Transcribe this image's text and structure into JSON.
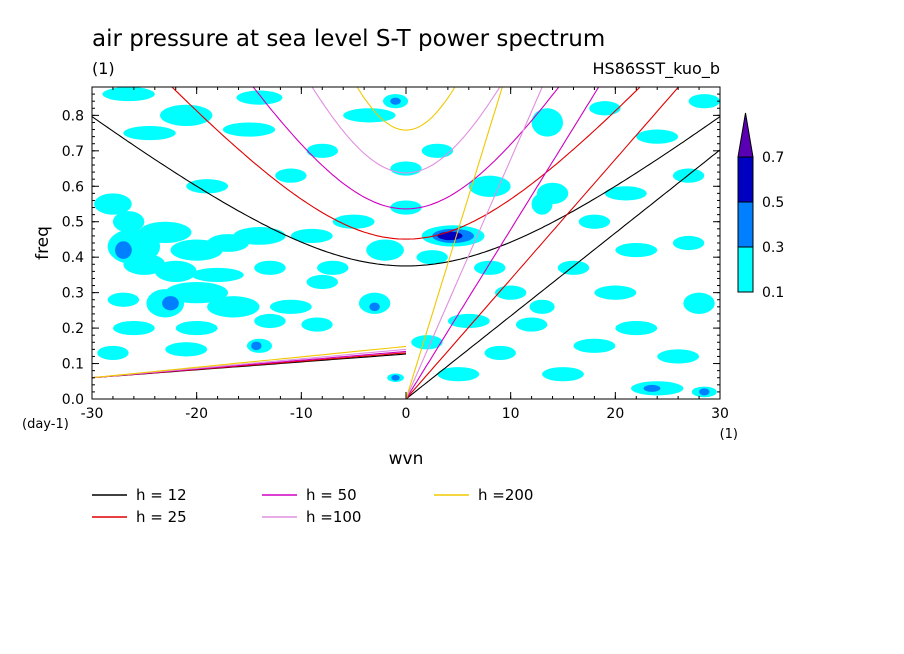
{
  "chart_data": {
    "type": "heatmap",
    "title": "air pressure at sea level S-T power spectrum",
    "subtitle_left": "(1)",
    "subtitle_right": "HS86SST_kuo_b",
    "xlabel": "wvn",
    "ylabel": "freq",
    "x_unit": "(1)",
    "y_unit": "(day-1)",
    "xlim": [
      -30,
      30
    ],
    "ylim": [
      0,
      0.88
    ],
    "xticks": [
      -30,
      -20,
      -10,
      0,
      10,
      20,
      30
    ],
    "xtick_labels": [
      "-30",
      "-20",
      "-10",
      "0",
      "10",
      "20",
      "30"
    ],
    "yticks": [
      0,
      0.1,
      0.2,
      0.3,
      0.4,
      0.5,
      0.6,
      0.7,
      0.8
    ],
    "ytick_labels": [
      "0.0",
      "0.1",
      "0.2",
      "0.3",
      "0.4",
      "0.5",
      "0.6",
      "0.7",
      "0.8"
    ],
    "colorbar": {
      "levels": [
        0.1,
        0.3,
        0.5,
        0.7
      ],
      "labels": [
        "0.1",
        "0.3",
        "0.5",
        "0.7"
      ],
      "colors": [
        "#00ffff",
        "#0080ff",
        "#0000c0",
        "#5a00b4"
      ]
    },
    "series": [
      {
        "name": "h = 12",
        "h": 12,
        "color": "#000000"
      },
      {
        "name": "h = 25",
        "h": 25,
        "color": "#e00000"
      },
      {
        "name": "h = 50",
        "h": 50,
        "color": "#d000c0"
      },
      {
        "name": "h =100",
        "h": 100,
        "color": "#e090e0"
      },
      {
        "name": "h =200",
        "h": 200,
        "color": "#f0c800"
      }
    ],
    "blobs": [
      {
        "x": -26.5,
        "y": 0.86,
        "rx": 2.5,
        "ry": 0.02,
        "level": 0
      },
      {
        "x": -21,
        "y": 0.8,
        "rx": 2.5,
        "ry": 0.03,
        "level": 0
      },
      {
        "x": -14,
        "y": 0.85,
        "rx": 2.2,
        "ry": 0.02,
        "level": 0
      },
      {
        "x": -8,
        "y": 0.7,
        "rx": 1.5,
        "ry": 0.02,
        "level": 0
      },
      {
        "x": -3.5,
        "y": 0.8,
        "rx": 2.5,
        "ry": 0.02,
        "level": 0
      },
      {
        "x": -15,
        "y": 0.76,
        "rx": 2.5,
        "ry": 0.02,
        "level": 0
      },
      {
        "x": -24.5,
        "y": 0.75,
        "rx": 2.5,
        "ry": 0.02,
        "level": 0
      },
      {
        "x": -28,
        "y": 0.55,
        "rx": 1.8,
        "ry": 0.03,
        "level": 0
      },
      {
        "x": -26.5,
        "y": 0.5,
        "rx": 1.5,
        "ry": 0.03,
        "level": 0
      },
      {
        "x": -26,
        "y": 0.43,
        "rx": 2.5,
        "ry": 0.05,
        "level": 0
      },
      {
        "x": -27,
        "y": 0.42,
        "rx": 0.8,
        "ry": 0.025,
        "level": 1
      },
      {
        "x": -23,
        "y": 0.47,
        "rx": 2.5,
        "ry": 0.03,
        "level": 0
      },
      {
        "x": -20,
        "y": 0.42,
        "rx": 2.5,
        "ry": 0.03,
        "level": 0
      },
      {
        "x": -17,
        "y": 0.44,
        "rx": 2,
        "ry": 0.025,
        "level": 0
      },
      {
        "x": -14,
        "y": 0.46,
        "rx": 2.5,
        "ry": 0.025,
        "level": 0
      },
      {
        "x": -9,
        "y": 0.46,
        "rx": 2,
        "ry": 0.02,
        "level": 0
      },
      {
        "x": -25,
        "y": 0.38,
        "rx": 2,
        "ry": 0.03,
        "level": 0
      },
      {
        "x": -22,
        "y": 0.36,
        "rx": 2,
        "ry": 0.03,
        "level": 0
      },
      {
        "x": -18,
        "y": 0.35,
        "rx": 2.5,
        "ry": 0.02,
        "level": 0
      },
      {
        "x": -13,
        "y": 0.37,
        "rx": 1.5,
        "ry": 0.02,
        "level": 0
      },
      {
        "x": -20,
        "y": 0.3,
        "rx": 3,
        "ry": 0.03,
        "level": 0
      },
      {
        "x": -23,
        "y": 0.27,
        "rx": 1.8,
        "ry": 0.04,
        "level": 0
      },
      {
        "x": -22.5,
        "y": 0.27,
        "rx": 0.8,
        "ry": 0.02,
        "level": 1
      },
      {
        "x": -16.5,
        "y": 0.26,
        "rx": 2.5,
        "ry": 0.03,
        "level": 0
      },
      {
        "x": -11,
        "y": 0.26,
        "rx": 2,
        "ry": 0.02,
        "level": 0
      },
      {
        "x": -27,
        "y": 0.28,
        "rx": 1.5,
        "ry": 0.02,
        "level": 0
      },
      {
        "x": -26,
        "y": 0.2,
        "rx": 2,
        "ry": 0.02,
        "level": 0
      },
      {
        "x": -20,
        "y": 0.2,
        "rx": 2,
        "ry": 0.02,
        "level": 0
      },
      {
        "x": -13,
        "y": 0.22,
        "rx": 1.5,
        "ry": 0.02,
        "level": 0
      },
      {
        "x": -8.5,
        "y": 0.21,
        "rx": 1.5,
        "ry": 0.02,
        "level": 0
      },
      {
        "x": -28,
        "y": 0.13,
        "rx": 1.5,
        "ry": 0.02,
        "level": 0
      },
      {
        "x": -21,
        "y": 0.14,
        "rx": 2,
        "ry": 0.02,
        "level": 0
      },
      {
        "x": -14,
        "y": 0.15,
        "rx": 1.2,
        "ry": 0.02,
        "level": 0
      },
      {
        "x": -14.3,
        "y": 0.15,
        "rx": 0.5,
        "ry": 0.012,
        "level": 1
      },
      {
        "x": -3,
        "y": 0.27,
        "rx": 1.5,
        "ry": 0.03,
        "level": 0
      },
      {
        "x": -3,
        "y": 0.26,
        "rx": 0.5,
        "ry": 0.012,
        "level": 1
      },
      {
        "x": -2,
        "y": 0.42,
        "rx": 1.8,
        "ry": 0.03,
        "level": 0
      },
      {
        "x": -5,
        "y": 0.5,
        "rx": 2,
        "ry": 0.02,
        "level": 0
      },
      {
        "x": 0,
        "y": 0.54,
        "rx": 1.5,
        "ry": 0.02,
        "level": 0
      },
      {
        "x": 4.5,
        "y": 0.46,
        "rx": 3,
        "ry": 0.03,
        "level": 0
      },
      {
        "x": 4.5,
        "y": 0.46,
        "rx": 2,
        "ry": 0.02,
        "level": 1
      },
      {
        "x": 4.2,
        "y": 0.46,
        "rx": 1.2,
        "ry": 0.012,
        "level": 2
      },
      {
        "x": 2.5,
        "y": 0.4,
        "rx": 1.5,
        "ry": 0.02,
        "level": 0
      },
      {
        "x": -7,
        "y": 0.37,
        "rx": 1.5,
        "ry": 0.02,
        "level": 0
      },
      {
        "x": -8,
        "y": 0.33,
        "rx": 1.5,
        "ry": 0.02,
        "level": 0
      },
      {
        "x": 8,
        "y": 0.6,
        "rx": 2,
        "ry": 0.03,
        "level": 0
      },
      {
        "x": 13.5,
        "y": 0.78,
        "rx": 1.5,
        "ry": 0.04,
        "level": 0
      },
      {
        "x": 14,
        "y": 0.58,
        "rx": 1.5,
        "ry": 0.03,
        "level": 0
      },
      {
        "x": 13,
        "y": 0.55,
        "rx": 1,
        "ry": 0.03,
        "level": 0
      },
      {
        "x": 0,
        "y": 0.65,
        "rx": 1.5,
        "ry": 0.02,
        "level": 0
      },
      {
        "x": 3,
        "y": 0.7,
        "rx": 1.5,
        "ry": 0.02,
        "level": 0
      },
      {
        "x": -1,
        "y": 0.84,
        "rx": 1.2,
        "ry": 0.02,
        "level": 0
      },
      {
        "x": -1,
        "y": 0.84,
        "rx": 0.5,
        "ry": 0.01,
        "level": 1
      },
      {
        "x": -11,
        "y": 0.63,
        "rx": 1.5,
        "ry": 0.02,
        "level": 0
      },
      {
        "x": -19,
        "y": 0.6,
        "rx": 2,
        "ry": 0.02,
        "level": 0
      },
      {
        "x": 8,
        "y": 0.37,
        "rx": 1.5,
        "ry": 0.02,
        "level": 0
      },
      {
        "x": 10,
        "y": 0.3,
        "rx": 1.5,
        "ry": 0.02,
        "level": 0
      },
      {
        "x": 6,
        "y": 0.22,
        "rx": 2,
        "ry": 0.02,
        "level": 0
      },
      {
        "x": 12,
        "y": 0.21,
        "rx": 1.5,
        "ry": 0.02,
        "level": 0
      },
      {
        "x": 2,
        "y": 0.16,
        "rx": 1.5,
        "ry": 0.02,
        "level": 0
      },
      {
        "x": 9,
        "y": 0.13,
        "rx": 1.5,
        "ry": 0.02,
        "level": 0
      },
      {
        "x": 5,
        "y": 0.07,
        "rx": 2,
        "ry": 0.02,
        "level": 0
      },
      {
        "x": -1,
        "y": 0.06,
        "rx": 0.8,
        "ry": 0.012,
        "level": 0
      },
      {
        "x": -1,
        "y": 0.06,
        "rx": 0.4,
        "ry": 0.008,
        "level": 1
      },
      {
        "x": 15,
        "y": 0.07,
        "rx": 2,
        "ry": 0.02,
        "level": 0
      },
      {
        "x": 24,
        "y": 0.03,
        "rx": 2.5,
        "ry": 0.02,
        "level": 0
      },
      {
        "x": 23.5,
        "y": 0.03,
        "rx": 0.8,
        "ry": 0.01,
        "level": 1
      },
      {
        "x": 28.5,
        "y": 0.02,
        "rx": 1.2,
        "ry": 0.015,
        "level": 0
      },
      {
        "x": 28.5,
        "y": 0.02,
        "rx": 0.5,
        "ry": 0.01,
        "level": 1
      },
      {
        "x": 18,
        "y": 0.15,
        "rx": 2,
        "ry": 0.02,
        "level": 0
      },
      {
        "x": 22,
        "y": 0.2,
        "rx": 2,
        "ry": 0.02,
        "level": 0
      },
      {
        "x": 26,
        "y": 0.12,
        "rx": 2,
        "ry": 0.02,
        "level": 0
      },
      {
        "x": 28,
        "y": 0.27,
        "rx": 1.5,
        "ry": 0.03,
        "level": 0
      },
      {
        "x": 20,
        "y": 0.3,
        "rx": 2,
        "ry": 0.02,
        "level": 0
      },
      {
        "x": 22,
        "y": 0.42,
        "rx": 2,
        "ry": 0.02,
        "level": 0
      },
      {
        "x": 27,
        "y": 0.44,
        "rx": 1.5,
        "ry": 0.02,
        "level": 0
      },
      {
        "x": 18,
        "y": 0.5,
        "rx": 1.5,
        "ry": 0.02,
        "level": 0
      },
      {
        "x": 21,
        "y": 0.58,
        "rx": 2,
        "ry": 0.02,
        "level": 0
      },
      {
        "x": 27,
        "y": 0.63,
        "rx": 1.5,
        "ry": 0.02,
        "level": 0
      },
      {
        "x": 24,
        "y": 0.74,
        "rx": 2,
        "ry": 0.02,
        "level": 0
      },
      {
        "x": 19,
        "y": 0.82,
        "rx": 1.5,
        "ry": 0.02,
        "level": 0
      },
      {
        "x": 28.5,
        "y": 0.84,
        "rx": 1.5,
        "ry": 0.02,
        "level": 0
      },
      {
        "x": 16,
        "y": 0.37,
        "rx": 1.5,
        "ry": 0.02,
        "level": 0
      },
      {
        "x": 13,
        "y": 0.26,
        "rx": 1.2,
        "ry": 0.02,
        "level": 0
      }
    ]
  }
}
